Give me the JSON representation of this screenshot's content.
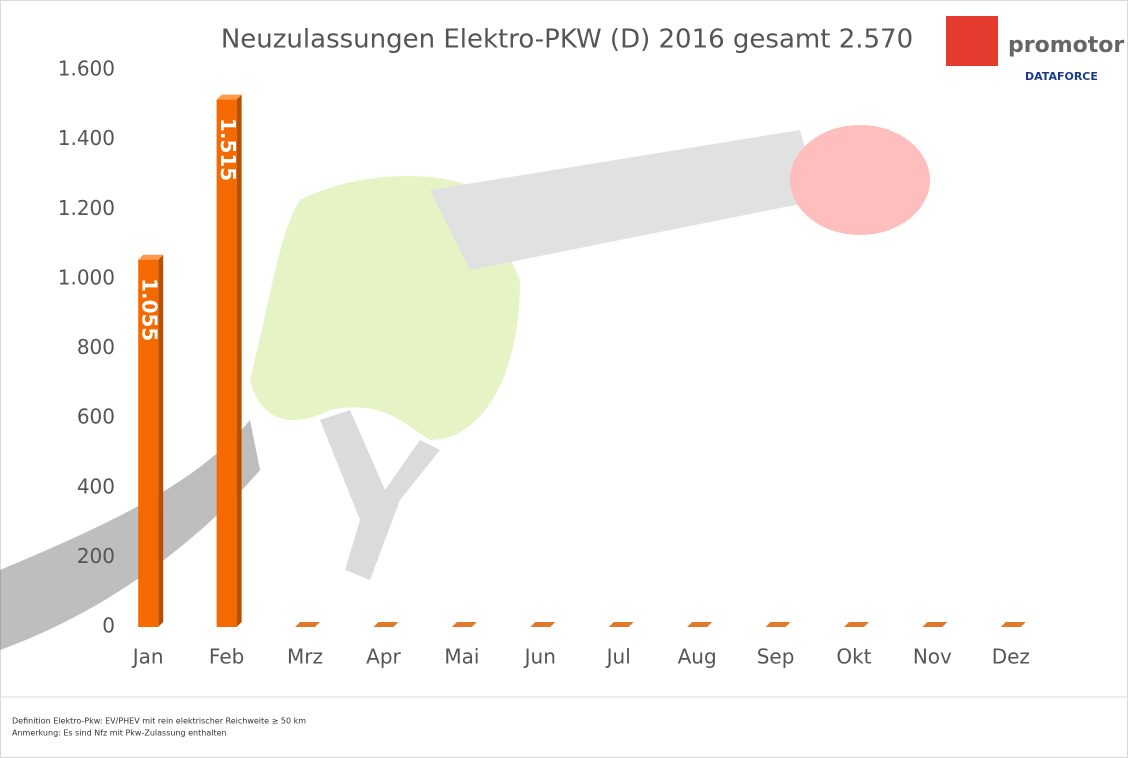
{
  "chart_data": {
    "type": "bar",
    "title": "Neuzulassungen Elektro-PKW (D) 2016 gesamt 2.570",
    "categories": [
      "Jan",
      "Feb",
      "Mrz",
      "Apr",
      "Mai",
      "Jun",
      "Jul",
      "Aug",
      "Sep",
      "Okt",
      "Nov",
      "Dez"
    ],
    "values": [
      1055,
      1515,
      0,
      0,
      0,
      0,
      0,
      0,
      0,
      0,
      0,
      0
    ],
    "value_labels": [
      "1.055",
      "1.515",
      null,
      null,
      null,
      null,
      null,
      null,
      null,
      null,
      null,
      null
    ],
    "color": "#f56a00",
    "ylim": [
      0,
      1600
    ],
    "yticks": [
      0,
      200,
      400,
      600,
      800,
      {
        "value": 1000,
        "label": "1.000"
      },
      {
        "value": 1200,
        "label": "1.200"
      },
      {
        "value": 1400,
        "label": "1.400"
      },
      {
        "value": 1600,
        "label": "1.600"
      }
    ],
    "grid": false,
    "logo": [
      "promotor",
      "DATAFORCE"
    ],
    "footnotes": [
      "Definition Elektro-Pkw: EV/PHEV mit rein elektrischer Reichweite ≥ 50 km",
      "Anmerkung: Es sind Nfz mit Pkw-Zulassung enthalten"
    ]
  }
}
